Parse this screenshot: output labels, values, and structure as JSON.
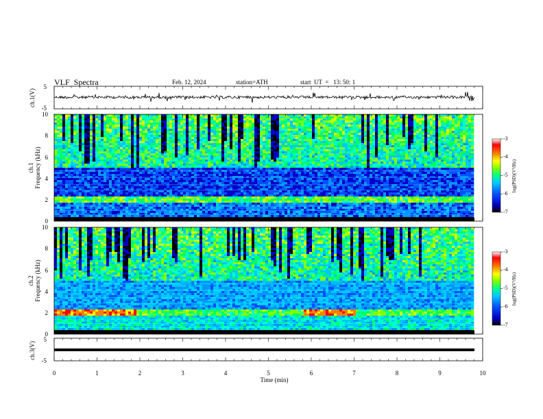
{
  "header": {
    "title": "VLF  Spectra",
    "date": "Feb. 12, 2024",
    "station": "station=ATH",
    "start": "start  UT  =   13: 50: 1"
  },
  "chart_data": [
    {
      "type": "line",
      "ylabel": "ch.1(V)",
      "yticks": [
        "5",
        "-5"
      ],
      "ylim": [
        -5,
        5
      ],
      "xlim": [
        0,
        10
      ],
      "series": [
        {
          "values_description_only_in_script": "",
          "baseline": 0
        }
      ]
    },
    {
      "type": "heatmap",
      "ylabel_top": "ch.1",
      "ylabel": "Frequency  (kHz)",
      "yticks": [
        "0",
        "2",
        "4",
        "6",
        "8",
        "10"
      ],
      "ylim": [
        0,
        10
      ],
      "xlim": [
        0,
        10
      ],
      "colorbar": {
        "label": "log(PSD)(V²/Hz)",
        "ticks": [
          "-3",
          "-4",
          "-5",
          "-6",
          "-7"
        ],
        "range": [
          -7,
          -3
        ]
      }
    },
    {
      "type": "heatmap",
      "ylabel_top": "ch.2",
      "ylabel": "Frequency  (kHz)",
      "yticks": [
        "0",
        "2",
        "4",
        "6",
        "8",
        "10"
      ],
      "ylim": [
        0,
        10
      ],
      "xlim": [
        0,
        10
      ],
      "colorbar": {
        "label": "log(PSD)(V²/Hz)",
        "ticks": [
          "-3",
          "-4",
          "-5",
          "-6",
          "-7"
        ],
        "range": [
          -7,
          -3
        ]
      }
    },
    {
      "type": "line",
      "ylabel": "ch.3(V)",
      "yticks": [
        "5",
        "-5"
      ],
      "ylim": [
        -5,
        5
      ],
      "xlim": [
        0,
        10
      ],
      "xlabel": "Time  (min)",
      "xticks": [
        "0",
        "1",
        "2",
        "3",
        "4",
        "5",
        "6",
        "7",
        "8",
        "9",
        "10"
      ]
    }
  ],
  "colors": {
    "trace": "#000000",
    "cmap": [
      "#000000",
      "#0000c8",
      "#0050ff",
      "#00c8ff",
      "#00ff90",
      "#80ff00",
      "#ffff00",
      "#ff8000",
      "#ff0000",
      "#ffffff"
    ]
  }
}
